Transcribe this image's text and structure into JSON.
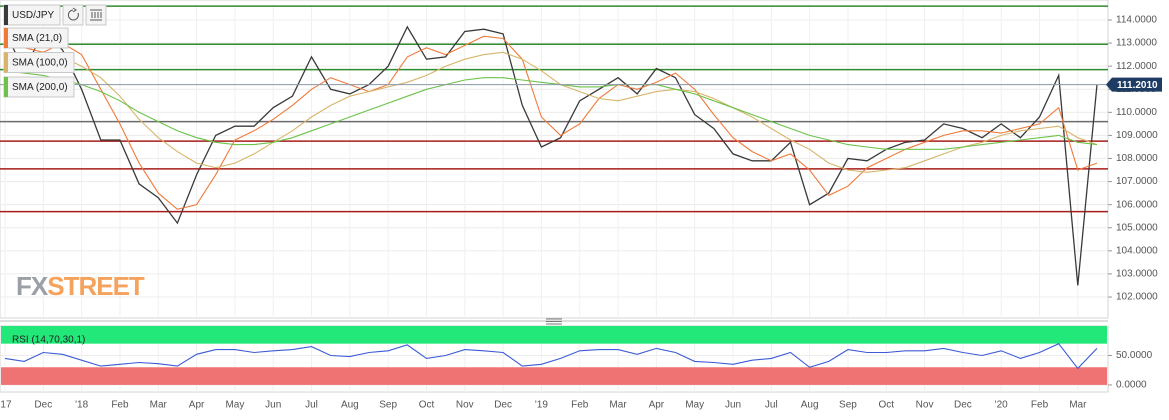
{
  "chart_data": [
    {
      "type": "line",
      "watermark": [
        "FX",
        "STREET"
      ],
      "series": [
        {
          "name": "USD/JPY",
          "color": "#3a3a3a",
          "values": [
            113.5,
            111.8,
            113.5,
            112.7,
            111.0,
            108.8,
            108.8,
            106.9,
            106.3,
            105.2,
            107.3,
            109.0,
            109.4,
            109.4,
            110.2,
            110.7,
            112.4,
            111.0,
            110.8,
            111.2,
            112.0,
            113.7,
            112.3,
            112.4,
            113.5,
            113.6,
            113.4,
            110.3,
            108.5,
            108.9,
            110.5,
            111.0,
            111.5,
            110.8,
            111.9,
            111.5,
            109.9,
            109.3,
            108.2,
            107.9,
            107.9,
            108.7,
            106.0,
            106.5,
            108.0,
            107.9,
            108.4,
            108.7,
            108.8,
            109.5,
            109.3,
            108.9,
            109.5,
            108.9,
            109.8,
            111.6,
            102.5,
            111.2
          ]
        },
        {
          "name": "SMA (21,0)",
          "color": "#f07a3a",
          "values": [
            113.0,
            112.8,
            112.6,
            113.0,
            112.5,
            111.0,
            109.5,
            107.8,
            106.5,
            105.8,
            106.0,
            107.3,
            108.8,
            109.2,
            109.7,
            110.3,
            111.0,
            111.5,
            111.2,
            110.9,
            111.2,
            112.4,
            112.8,
            112.5,
            112.9,
            113.3,
            113.2,
            112.3,
            109.8,
            109.0,
            109.5,
            110.6,
            111.2,
            111.0,
            111.3,
            111.7,
            111.0,
            109.9,
            108.9,
            108.3,
            107.9,
            108.2,
            107.5,
            106.4,
            106.8,
            107.6,
            108.0,
            108.4,
            108.7,
            109.0,
            109.2,
            109.2,
            109.1,
            109.3,
            109.5,
            110.2,
            107.5,
            107.8
          ]
        },
        {
          "name": "SMA (100,0)",
          "color": "#d7b56a",
          "values": [
            112.3,
            112.4,
            112.5,
            112.4,
            112.0,
            111.5,
            110.7,
            109.7,
            108.9,
            108.3,
            107.8,
            107.6,
            107.8,
            108.2,
            108.7,
            109.2,
            109.8,
            110.3,
            110.7,
            110.9,
            111.1,
            111.3,
            111.6,
            112.0,
            112.3,
            112.5,
            112.6,
            112.3,
            111.8,
            111.2,
            110.9,
            110.6,
            110.5,
            110.7,
            110.9,
            111.0,
            110.9,
            110.6,
            110.2,
            109.8,
            109.3,
            108.8,
            108.4,
            107.8,
            107.5,
            107.4,
            107.5,
            107.6,
            107.9,
            108.2,
            108.5,
            108.7,
            109.0,
            109.2,
            109.3,
            109.4,
            108.9,
            108.6
          ]
        },
        {
          "name": "SMA (200,0)",
          "color": "#6cc24a",
          "values": [
            111.8,
            111.7,
            111.6,
            111.4,
            111.2,
            110.9,
            110.5,
            110.0,
            109.6,
            109.2,
            108.9,
            108.7,
            108.6,
            108.6,
            108.7,
            108.9,
            109.2,
            109.5,
            109.8,
            110.1,
            110.4,
            110.7,
            111.0,
            111.2,
            111.4,
            111.5,
            111.5,
            111.4,
            111.3,
            111.2,
            111.1,
            111.1,
            111.2,
            111.2,
            111.2,
            111.0,
            110.8,
            110.5,
            110.2,
            109.9,
            109.6,
            109.3,
            109.0,
            108.8,
            108.6,
            108.5,
            108.4,
            108.4,
            108.4,
            108.4,
            108.5,
            108.6,
            108.7,
            108.8,
            108.9,
            109.0,
            108.7,
            108.6
          ]
        }
      ],
      "levels": [
        {
          "value": 114.6,
          "color": "#2e8b2e"
        },
        {
          "value": 112.95,
          "color": "#2e8b2e"
        },
        {
          "value": 111.85,
          "color": "#2e8b2e"
        },
        {
          "value": 109.6,
          "color": "#6b6b6b"
        },
        {
          "value": 108.75,
          "color": "#a81c1c"
        },
        {
          "value": 107.55,
          "color": "#a81c1c"
        },
        {
          "value": 105.7,
          "color": "#a81c1c"
        }
      ],
      "last_price": {
        "value": 111.201,
        "label": "111.2010",
        "color": "#1d3b63"
      },
      "ylim": [
        101.09,
        114.65
      ],
      "yticks": [
        {
          "value": 102,
          "label": "102.0000"
        },
        {
          "value": 103,
          "label": "103.0000"
        },
        {
          "value": 104,
          "label": "104.0000"
        },
        {
          "value": 105,
          "label": "105.0000"
        },
        {
          "value": 106,
          "label": "106.0000"
        },
        {
          "value": 107,
          "label": "107.0000"
        },
        {
          "value": 108,
          "label": "108.0000"
        },
        {
          "value": 109,
          "label": "109.0000"
        },
        {
          "value": 110,
          "label": "110.0000"
        },
        {
          "value": 111,
          "label": "111.0000"
        },
        {
          "value": 112,
          "label": "112.0000"
        },
        {
          "value": 113,
          "label": "113.0000"
        },
        {
          "value": 114,
          "label": "114.0000"
        }
      ],
      "grid": true
    },
    {
      "type": "line",
      "series": [
        {
          "name": "RSI (14,70,30,1)",
          "color": "#3c5bd6",
          "values": [
            45,
            40,
            55,
            52,
            42,
            32,
            35,
            38,
            36,
            32,
            52,
            60,
            60,
            55,
            58,
            60,
            65,
            50,
            48,
            55,
            58,
            68,
            45,
            50,
            60,
            58,
            55,
            32,
            35,
            45,
            58,
            60,
            60,
            52,
            62,
            55,
            40,
            38,
            35,
            42,
            45,
            55,
            30,
            40,
            60,
            55,
            55,
            58,
            58,
            62,
            55,
            50,
            58,
            45,
            55,
            70,
            28,
            62
          ]
        }
      ],
      "bands": [
        {
          "from": 70,
          "to": 100,
          "color": "#22e87a"
        },
        {
          "from": 0,
          "to": 30,
          "color": "#f07373"
        }
      ],
      "ylim": [
        -12,
        100
      ],
      "yticks": [
        {
          "value": 0,
          "label": "0.0000"
        },
        {
          "value": 50,
          "label": "50.0000"
        }
      ],
      "categories": [
        "'17",
        null,
        "Dec",
        null,
        "'18",
        null,
        "Feb",
        null,
        "Mar",
        null,
        "Apr",
        null,
        "May",
        null,
        "Jun",
        null,
        "Jul",
        null,
        "Aug",
        null,
        "Sep",
        null,
        "Oct",
        null,
        "Nov",
        null,
        "Dec",
        null,
        "'19",
        null,
        "Feb",
        null,
        "Mar",
        null,
        "Apr",
        null,
        "May",
        null,
        "Jun",
        null,
        "Jul",
        null,
        "Aug",
        null,
        "Sep",
        null,
        "Oct",
        null,
        "Nov",
        null,
        "Dec",
        null,
        "'20",
        null,
        "Feb",
        null,
        "Mar",
        null
      ],
      "grid": true
    }
  ]
}
